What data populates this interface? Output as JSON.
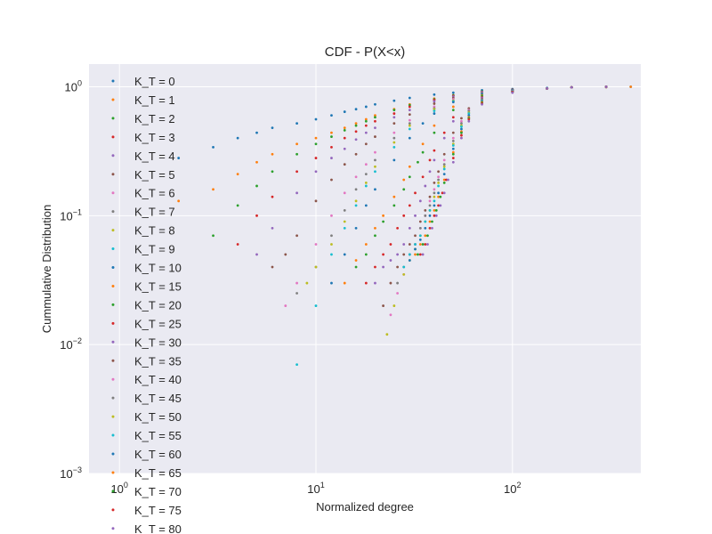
{
  "chart_data": {
    "type": "scatter",
    "title": "CDF - P(X<x)",
    "xlabel": "Normalized degree",
    "ylabel": "Cummulative Distribution",
    "xscale": "log",
    "yscale": "log",
    "xlim": [
      0.7,
      450
    ],
    "ylim": [
      0.001,
      1.5
    ],
    "xticks": [
      {
        "value": 1,
        "base": "10",
        "exp": "0"
      },
      {
        "value": 10,
        "base": "10",
        "exp": "1"
      },
      {
        "value": 100,
        "base": "10",
        "exp": "2"
      }
    ],
    "yticks": [
      {
        "value": 1,
        "base": "10",
        "exp": "0"
      },
      {
        "value": 0.1,
        "base": "10",
        "exp": "-1"
      },
      {
        "value": 0.01,
        "base": "10",
        "exp": "-2"
      },
      {
        "value": 0.001,
        "base": "10",
        "exp": "-3"
      }
    ],
    "grid": true,
    "background": "#eaeaf2",
    "legend_position": "upper-left",
    "series": [
      {
        "name": "K_T = 0",
        "color": "#1f77b4",
        "x": [
          2,
          3,
          4,
          5,
          6,
          8,
          10,
          12,
          14,
          16,
          18,
          20,
          25,
          30,
          40,
          50,
          70,
          100,
          150,
          200,
          300,
          400
        ],
        "y": [
          0.28,
          0.34,
          0.4,
          0.44,
          0.48,
          0.52,
          0.56,
          0.6,
          0.64,
          0.67,
          0.7,
          0.73,
          0.78,
          0.82,
          0.87,
          0.9,
          0.94,
          0.96,
          0.98,
          0.99,
          0.995,
          1.0
        ]
      },
      {
        "name": "K_T = 1",
        "color": "#ff7f0e",
        "x": [
          2,
          3,
          4,
          5,
          6,
          8,
          10,
          12,
          14,
          16,
          18,
          20,
          25,
          30,
          40,
          50,
          70,
          100,
          150,
          200,
          300,
          400
        ],
        "y": [
          0.13,
          0.16,
          0.21,
          0.26,
          0.3,
          0.36,
          0.4,
          0.44,
          0.48,
          0.52,
          0.56,
          0.6,
          0.67,
          0.73,
          0.81,
          0.86,
          0.92,
          0.95,
          0.97,
          0.99,
          0.995,
          1.0
        ]
      },
      {
        "name": "K_T = 2",
        "color": "#2ca02c",
        "x": [
          3,
          4,
          5,
          6,
          8,
          10,
          12,
          14,
          16,
          18,
          20,
          25,
          30,
          40,
          50,
          70,
          100,
          150,
          200,
          300
        ],
        "y": [
          0.07,
          0.12,
          0.17,
          0.22,
          0.3,
          0.36,
          0.41,
          0.46,
          0.5,
          0.54,
          0.58,
          0.66,
          0.72,
          0.8,
          0.86,
          0.92,
          0.95,
          0.97,
          0.99,
          1.0
        ]
      },
      {
        "name": "K_T = 3",
        "color": "#d62728",
        "x": [
          4,
          5,
          6,
          8,
          10,
          12,
          14,
          16,
          18,
          20,
          25,
          30,
          40,
          50,
          70,
          100,
          150,
          200,
          300
        ],
        "y": [
          0.06,
          0.1,
          0.14,
          0.22,
          0.28,
          0.34,
          0.4,
          0.45,
          0.5,
          0.54,
          0.62,
          0.7,
          0.79,
          0.85,
          0.91,
          0.95,
          0.97,
          0.99,
          1.0
        ]
      },
      {
        "name": "K_T = 4",
        "color": "#9467bd",
        "x": [
          5,
          6,
          8,
          10,
          12,
          14,
          16,
          18,
          20,
          25,
          30,
          40,
          50,
          70,
          100,
          150,
          200,
          300
        ],
        "y": [
          0.05,
          0.08,
          0.15,
          0.22,
          0.28,
          0.33,
          0.39,
          0.44,
          0.48,
          0.58,
          0.66,
          0.77,
          0.84,
          0.91,
          0.95,
          0.97,
          0.99,
          1.0
        ]
      },
      {
        "name": "K_T = 5",
        "color": "#8c564b",
        "x": [
          6,
          7,
          8,
          10,
          12,
          14,
          16,
          18,
          20,
          25,
          30,
          40,
          50,
          70,
          100,
          150,
          200,
          300
        ],
        "y": [
          0.04,
          0.05,
          0.07,
          0.13,
          0.19,
          0.25,
          0.3,
          0.36,
          0.41,
          0.52,
          0.61,
          0.74,
          0.82,
          0.9,
          0.95,
          0.97,
          0.99,
          1.0
        ]
      },
      {
        "name": "K_T = 6",
        "color": "#e377c2",
        "x": [
          7,
          8,
          10,
          12,
          14,
          16,
          18,
          20,
          25,
          30,
          40,
          50,
          70,
          100,
          150,
          200,
          300
        ],
        "y": [
          0.02,
          0.03,
          0.06,
          0.1,
          0.15,
          0.2,
          0.25,
          0.31,
          0.44,
          0.55,
          0.7,
          0.8,
          0.89,
          0.94,
          0.97,
          0.99,
          1.0
        ]
      },
      {
        "name": "K_T = 7",
        "color": "#7f7f7f",
        "x": [
          8,
          10,
          12,
          14,
          16,
          18,
          20,
          25,
          30,
          40,
          50,
          70,
          100,
          150,
          200,
          300
        ],
        "y": [
          0.025,
          0.04,
          0.07,
          0.11,
          0.16,
          0.21,
          0.27,
          0.4,
          0.52,
          0.68,
          0.78,
          0.88,
          0.94,
          0.97,
          0.99,
          1.0
        ]
      },
      {
        "name": "K_T = 8",
        "color": "#bcbd22",
        "x": [
          9,
          10,
          12,
          14,
          16,
          18,
          20,
          25,
          30,
          40,
          50,
          70,
          100,
          150,
          200,
          300
        ],
        "y": [
          0.03,
          0.04,
          0.06,
          0.09,
          0.13,
          0.18,
          0.24,
          0.37,
          0.5,
          0.67,
          0.78,
          0.88,
          0.94,
          0.97,
          0.99,
          1.0
        ]
      },
      {
        "name": "K_T = 9",
        "color": "#17becf",
        "x": [
          8,
          10,
          12,
          14,
          16,
          18,
          20,
          25,
          30,
          40,
          50,
          70,
          100,
          150,
          200,
          300
        ],
        "y": [
          0.007,
          0.02,
          0.05,
          0.08,
          0.12,
          0.17,
          0.22,
          0.34,
          0.47,
          0.65,
          0.77,
          0.88,
          0.94,
          0.97,
          0.99,
          1.0
        ]
      },
      {
        "name": "K_T = 10",
        "color": "#1f77b4",
        "x": [
          12,
          14,
          16,
          18,
          20,
          25,
          30,
          35,
          40,
          50,
          70,
          100,
          150,
          200,
          300
        ],
        "y": [
          0.03,
          0.05,
          0.08,
          0.12,
          0.16,
          0.27,
          0.4,
          0.52,
          0.62,
          0.76,
          0.88,
          0.94,
          0.97,
          0.99,
          1.0
        ]
      },
      {
        "name": "K_T = 15",
        "color": "#ff7f0e",
        "x": [
          14,
          16,
          18,
          20,
          22,
          25,
          28,
          30,
          35,
          40,
          50,
          70,
          100,
          150,
          200,
          300
        ],
        "y": [
          0.03,
          0.045,
          0.06,
          0.08,
          0.1,
          0.14,
          0.19,
          0.24,
          0.36,
          0.5,
          0.7,
          0.86,
          0.93,
          0.97,
          0.99,
          1.0
        ]
      },
      {
        "name": "K_T = 20",
        "color": "#2ca02c",
        "x": [
          16,
          18,
          20,
          22,
          25,
          28,
          30,
          33,
          35,
          40,
          50,
          70,
          100,
          150,
          200,
          300
        ],
        "y": [
          0.04,
          0.05,
          0.07,
          0.09,
          0.12,
          0.16,
          0.2,
          0.26,
          0.31,
          0.44,
          0.66,
          0.85,
          0.93,
          0.97,
          0.99,
          1.0
        ]
      },
      {
        "name": "K_T = 25",
        "color": "#d62728",
        "x": [
          18,
          20,
          22,
          24,
          26,
          28,
          30,
          32,
          35,
          38,
          40,
          45,
          50,
          70,
          100,
          150,
          200,
          300
        ],
        "y": [
          0.03,
          0.04,
          0.05,
          0.06,
          0.08,
          0.1,
          0.12,
          0.15,
          0.2,
          0.27,
          0.32,
          0.44,
          0.58,
          0.83,
          0.93,
          0.97,
          0.99,
          1.0
        ]
      },
      {
        "name": "K_T = 30",
        "color": "#9467bd",
        "x": [
          20,
          22,
          24,
          26,
          28,
          30,
          32,
          34,
          36,
          38,
          40,
          45,
          50,
          70,
          100,
          150,
          200,
          300
        ],
        "y": [
          0.03,
          0.04,
          0.045,
          0.05,
          0.06,
          0.08,
          0.1,
          0.13,
          0.17,
          0.22,
          0.27,
          0.4,
          0.54,
          0.82,
          0.93,
          0.97,
          0.99,
          1.0
        ]
      },
      {
        "name": "K_T = 35",
        "color": "#8c564b",
        "x": [
          22,
          24,
          26,
          28,
          30,
          32,
          34,
          36,
          38,
          40,
          42,
          45,
          50,
          55,
          60,
          70,
          100,
          150,
          200,
          300
        ],
        "y": [
          0.02,
          0.03,
          0.04,
          0.05,
          0.06,
          0.07,
          0.09,
          0.11,
          0.14,
          0.18,
          0.22,
          0.3,
          0.44,
          0.57,
          0.68,
          0.8,
          0.92,
          0.97,
          0.99,
          1.0
        ]
      },
      {
        "name": "K_T = 40",
        "color": "#e377c2",
        "x": [
          24,
          26,
          28,
          30,
          32,
          34,
          36,
          38,
          40,
          42,
          45,
          50,
          55,
          60,
          70,
          100,
          150,
          200,
          300
        ],
        "y": [
          0.017,
          0.025,
          0.035,
          0.05,
          0.06,
          0.08,
          0.1,
          0.13,
          0.16,
          0.2,
          0.27,
          0.4,
          0.54,
          0.66,
          0.79,
          0.92,
          0.97,
          0.99,
          1.0
        ]
      },
      {
        "name": "K_T = 45",
        "color": "#7f7f7f",
        "x": [
          26,
          28,
          30,
          32,
          34,
          36,
          38,
          40,
          42,
          45,
          50,
          55,
          60,
          70,
          100,
          150,
          200,
          300
        ],
        "y": [
          0.03,
          0.04,
          0.05,
          0.06,
          0.08,
          0.1,
          0.12,
          0.15,
          0.19,
          0.25,
          0.38,
          0.52,
          0.65,
          0.79,
          0.92,
          0.97,
          0.99,
          1.0
        ]
      },
      {
        "name": "K_T = 50",
        "color": "#bcbd22",
        "x": [
          23,
          25,
          28,
          30,
          32,
          34,
          36,
          38,
          40,
          42,
          45,
          50,
          55,
          60,
          70,
          100,
          150,
          200,
          300
        ],
        "y": [
          0.012,
          0.02,
          0.035,
          0.045,
          0.055,
          0.07,
          0.09,
          0.11,
          0.14,
          0.18,
          0.24,
          0.36,
          0.5,
          0.63,
          0.78,
          0.92,
          0.97,
          0.99,
          1.0
        ]
      },
      {
        "name": "K_T = 55",
        "color": "#17becf",
        "x": [
          28,
          30,
          32,
          34,
          36,
          38,
          40,
          42,
          45,
          50,
          55,
          60,
          70,
          100,
          150,
          200,
          300
        ],
        "y": [
          0.04,
          0.05,
          0.06,
          0.07,
          0.09,
          0.11,
          0.13,
          0.17,
          0.23,
          0.35,
          0.49,
          0.62,
          0.78,
          0.92,
          0.97,
          0.99,
          1.0
        ]
      },
      {
        "name": "K_T = 60",
        "color": "#1f77b4",
        "x": [
          30,
          32,
          34,
          36,
          38,
          40,
          42,
          45,
          50,
          55,
          60,
          70,
          100,
          150,
          200,
          300
        ],
        "y": [
          0.045,
          0.055,
          0.065,
          0.08,
          0.1,
          0.12,
          0.15,
          0.21,
          0.33,
          0.47,
          0.6,
          0.77,
          0.91,
          0.97,
          0.99,
          1.0
        ]
      },
      {
        "name": "K_T = 65",
        "color": "#ff7f0e",
        "x": [
          32,
          34,
          36,
          38,
          40,
          42,
          45,
          50,
          55,
          60,
          70,
          100,
          150,
          200,
          300
        ],
        "y": [
          0.05,
          0.06,
          0.07,
          0.09,
          0.11,
          0.14,
          0.19,
          0.31,
          0.45,
          0.58,
          0.76,
          0.91,
          0.97,
          0.99,
          1.0
        ]
      },
      {
        "name": "K_T = 70",
        "color": "#2ca02c",
        "x": [
          33,
          35,
          37,
          39,
          41,
          43,
          45,
          50,
          55,
          60,
          70,
          100,
          150,
          200,
          300
        ],
        "y": [
          0.05,
          0.06,
          0.07,
          0.09,
          0.11,
          0.14,
          0.18,
          0.3,
          0.44,
          0.57,
          0.75,
          0.91,
          0.97,
          0.99,
          1.0
        ]
      },
      {
        "name": "K_T = 75",
        "color": "#d62728",
        "x": [
          34,
          36,
          38,
          40,
          42,
          44,
          46,
          50,
          55,
          60,
          70,
          100,
          150,
          200,
          300
        ],
        "y": [
          0.05,
          0.06,
          0.08,
          0.1,
          0.12,
          0.15,
          0.19,
          0.28,
          0.42,
          0.56,
          0.74,
          0.91,
          0.97,
          0.99,
          1.0
        ]
      },
      {
        "name": "K_T = 80",
        "color": "#9467bd",
        "x": [
          35,
          37,
          39,
          41,
          43,
          45,
          47,
          50,
          55,
          60,
          70,
          100,
          150,
          200,
          300
        ],
        "y": [
          0.05,
          0.06,
          0.08,
          0.1,
          0.12,
          0.15,
          0.19,
          0.26,
          0.4,
          0.54,
          0.73,
          0.9,
          0.97,
          0.99,
          1.0
        ]
      }
    ]
  }
}
